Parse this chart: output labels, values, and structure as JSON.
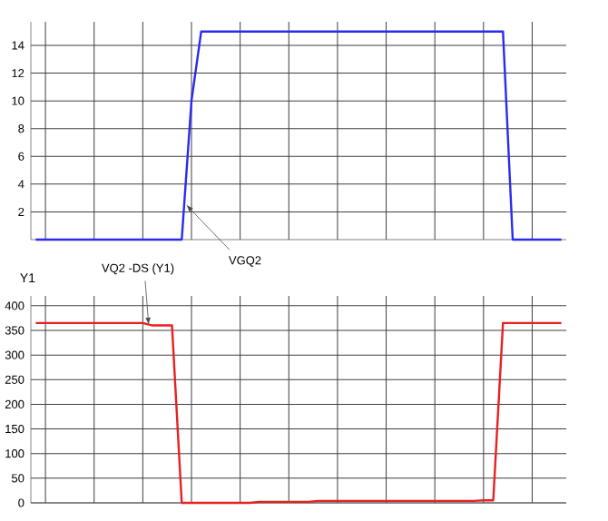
{
  "chart_data": [
    {
      "type": "line",
      "categories": [
        null,
        null,
        null,
        null,
        null,
        null,
        null,
        null,
        null,
        null,
        null,
        null,
        null,
        null,
        null,
        null,
        null,
        null,
        null,
        null,
        null,
        null,
        null,
        null,
        null,
        null,
        null,
        null,
        null,
        null,
        null,
        null,
        null,
        null,
        null,
        null,
        null,
        null,
        null,
        null,
        null,
        null,
        null,
        null,
        null,
        null,
        null,
        null,
        null,
        null,
        null,
        null,
        null,
        null,
        null
      ],
      "series": [
        {
          "color": "#2a2af0",
          "values": [
            0,
            0,
            0,
            0,
            0,
            0,
            0,
            0,
            0,
            0,
            0,
            0,
            0,
            0,
            0,
            0,
            10,
            15,
            15,
            15,
            15,
            15,
            15,
            15,
            15,
            15,
            15,
            15,
            15,
            15,
            15,
            15,
            15,
            15,
            15,
            15,
            15,
            15,
            15,
            15,
            15,
            15,
            15,
            15,
            15,
            15,
            15,
            15,
            15,
            0,
            0,
            0,
            0,
            0,
            0
          ]
        }
      ],
      "ylim": [
        0,
        15.7
      ],
      "yticks": [
        2,
        4,
        6,
        8,
        10,
        12,
        14
      ],
      "grid": true,
      "tick_labels": "y",
      "marker": "none",
      "line_style": "solid",
      "annotations": [
        "VGQ2"
      ]
    },
    {
      "type": "line",
      "ylabel": "Y1",
      "categories": [
        null,
        null,
        null,
        null,
        null,
        null,
        null,
        null,
        null,
        null,
        null,
        null,
        null,
        null,
        null,
        null,
        null,
        null,
        null,
        null,
        null,
        null,
        null,
        null,
        null,
        null,
        null,
        null,
        null,
        null,
        null,
        null,
        null,
        null,
        null,
        null,
        null,
        null,
        null,
        null,
        null,
        null,
        null,
        null,
        null,
        null,
        null,
        null,
        null,
        null,
        null,
        null,
        null,
        null,
        null
      ],
      "series": [
        {
          "color": "#e82020",
          "values": [
            365,
            365,
            365,
            365,
            365,
            365,
            365,
            365,
            365,
            365,
            365,
            365,
            360,
            360,
            360,
            0,
            0,
            0,
            0,
            0,
            0,
            0,
            0,
            2,
            2,
            2,
            2,
            2,
            2,
            4,
            4,
            4,
            4,
            4,
            4,
            4,
            4,
            4,
            4,
            4,
            4,
            4,
            4,
            4,
            4,
            4,
            5,
            5,
            365,
            365,
            365,
            365,
            365,
            365,
            365
          ]
        }
      ],
      "ylim": [
        0,
        420
      ],
      "yticks": [
        0,
        50,
        100,
        150,
        200,
        250,
        300,
        350,
        400
      ],
      "grid": true,
      "tick_labels": "y",
      "marker": "none",
      "line_style": "solid",
      "annotations": [
        "VQ2 -DS (Y1)"
      ]
    }
  ]
}
